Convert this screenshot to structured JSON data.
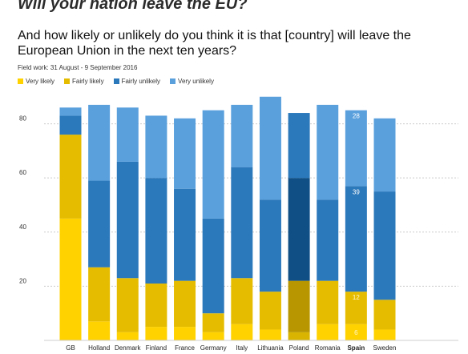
{
  "header": {
    "title": "Will your nation leave the EU?",
    "subtitle": "And how likely or unlikely do you think it is that [country] will leave the European Union in the next ten years?",
    "fieldwork": "Field work: 31 August - 9 September 2016"
  },
  "colors": {
    "very_likely": "#ffd200",
    "fairly_likely": "#e6bc00",
    "fairly_unlikely": "#2b78bb",
    "very_unlikely": "#5aa0dd",
    "grid": "#cccccc"
  },
  "chart_data": {
    "type": "bar",
    "stacked": true,
    "categories": [
      "GB",
      "Holland",
      "Denmark",
      "Finland",
      "France",
      "Germany",
      "Italy",
      "Lithuania",
      "Poland",
      "Romania",
      "Spain",
      "Sweden"
    ],
    "highlight_category": "Spain",
    "series": [
      {
        "name": "Very likely",
        "values": [
          45,
          7,
          3,
          5,
          5,
          3,
          6,
          4,
          3,
          6,
          6,
          4
        ]
      },
      {
        "name": "Fairly likely",
        "values": [
          31,
          20,
          20,
          16,
          17,
          7,
          17,
          14,
          19,
          16,
          12,
          11
        ]
      },
      {
        "name": "Fairly unlikely",
        "values": [
          7,
          32,
          43,
          39,
          34,
          35,
          41,
          34,
          38,
          30,
          39,
          40
        ]
      },
      {
        "name": "Very unlikely",
        "values": [
          3,
          28,
          20,
          23,
          26,
          40,
          23,
          38,
          24,
          35,
          28,
          27
        ]
      }
    ],
    "data_labels": [
      {
        "category": "Spain",
        "series": "Very likely",
        "text": "6"
      },
      {
        "category": "Spain",
        "series": "Fairly likely",
        "text": "12"
      },
      {
        "category": "Spain",
        "series": "Fairly unlikely",
        "text": "39"
      },
      {
        "category": "Spain",
        "series": "Very unlikely",
        "text": "28"
      }
    ],
    "darkened_bars": [
      "Poland"
    ],
    "yticks": [
      20,
      40,
      60,
      80
    ],
    "ylim": [
      0,
      92
    ],
    "grid": true,
    "legend_position": "top-left"
  }
}
